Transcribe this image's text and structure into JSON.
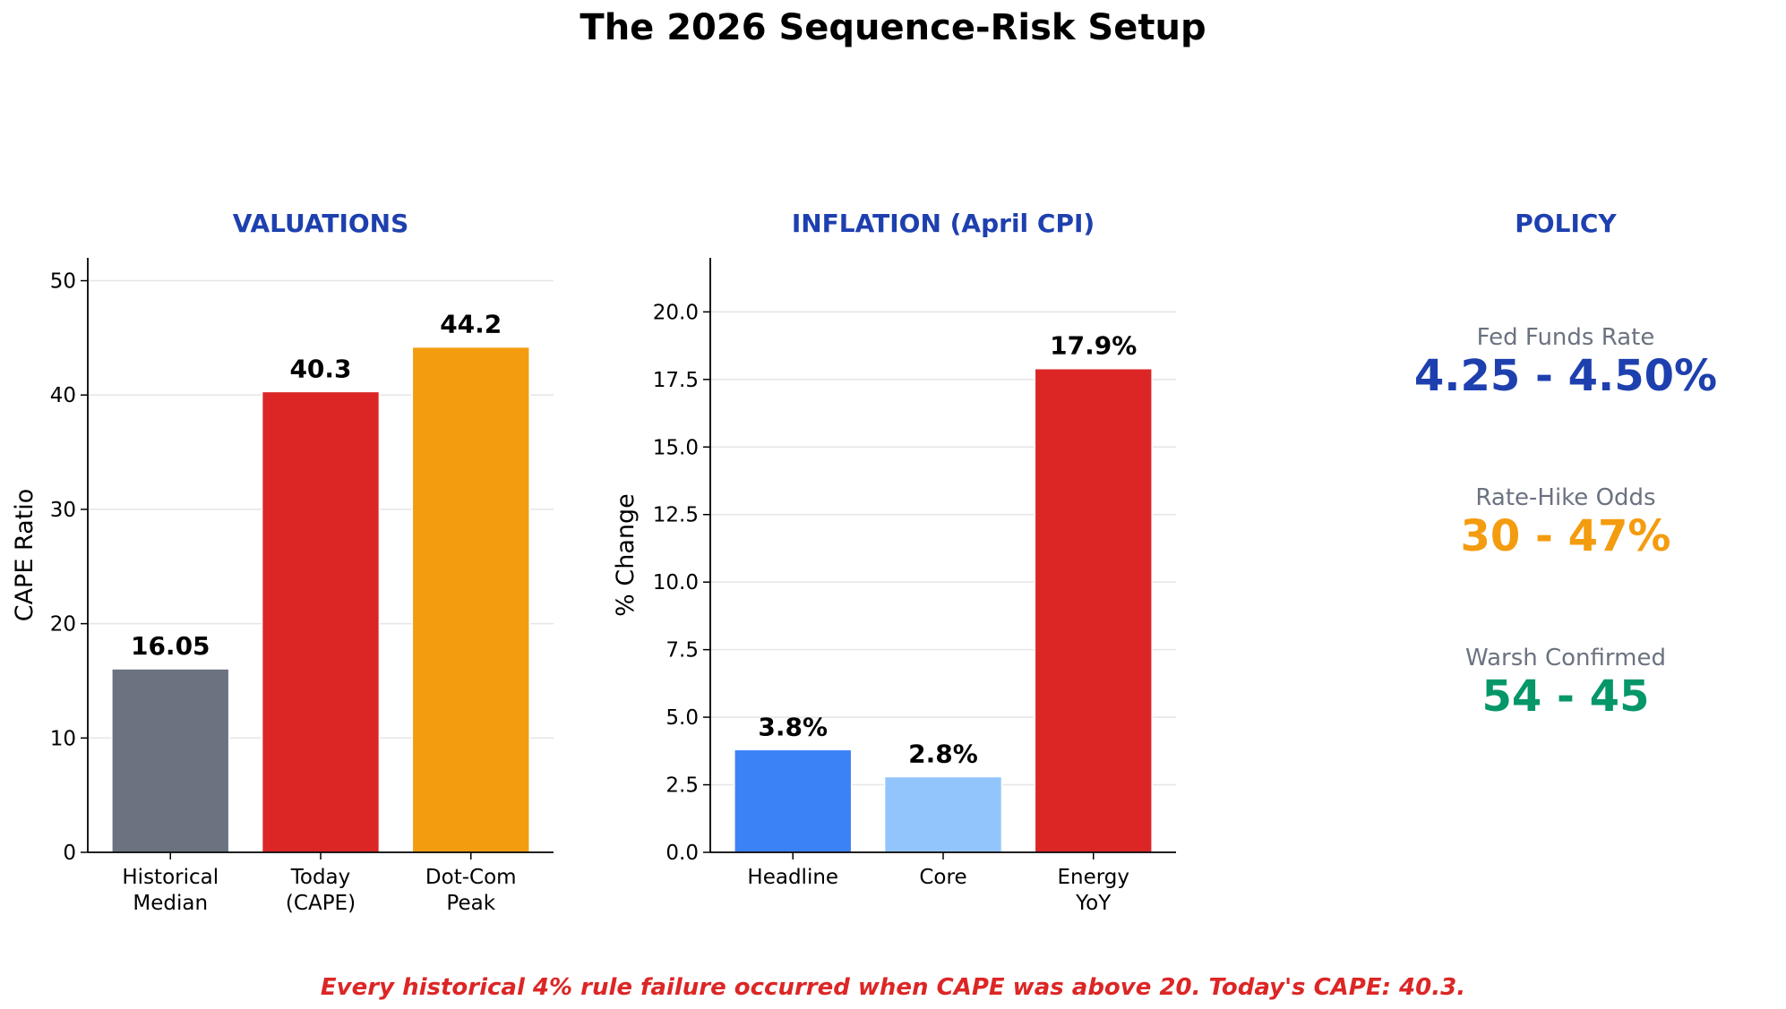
{
  "title": "The 2026 Sequence-Risk Setup",
  "colors": {
    "heading": "#1e40af",
    "footer": "#dc2626"
  },
  "chart_data": [
    {
      "type": "bar",
      "title": "VALUATIONS",
      "ylabel": "CAPE Ratio",
      "ylim": [
        0,
        52
      ],
      "yticks": [
        "0",
        "10",
        "20",
        "30",
        "40",
        "50"
      ],
      "categories": [
        [
          "Historical",
          "Median"
        ],
        [
          "Today",
          "(CAPE)"
        ],
        [
          "Dot-Com",
          "Peak"
        ]
      ],
      "values": [
        16.05,
        40.3,
        44.2
      ],
      "value_labels": [
        "16.05",
        "40.3",
        "44.2"
      ],
      "colors": [
        "#6b7280",
        "#dc2626",
        "#f39c0f"
      ],
      "grid": "y"
    },
    {
      "type": "bar",
      "title": "INFLATION (April CPI)",
      "ylabel": "% Change",
      "ylim": [
        0,
        22
      ],
      "yticks": [
        "0.0",
        "2.5",
        "5.0",
        "7.5",
        "10.0",
        "12.5",
        "15.0",
        "17.5",
        "20.0"
      ],
      "categories": [
        [
          "Headline"
        ],
        [
          "Core"
        ],
        [
          "Energy",
          "YoY"
        ]
      ],
      "values": [
        3.8,
        2.8,
        17.9
      ],
      "value_labels": [
        "3.8%",
        "2.8%",
        "17.9%"
      ],
      "colors": [
        "#3b82f6",
        "#93c5fd",
        "#dc2626"
      ],
      "grid": "y"
    }
  ],
  "policy": {
    "title": "POLICY",
    "items": [
      {
        "label": "Fed Funds Rate",
        "value": "4.25 - 4.50%",
        "color": "#1e40af"
      },
      {
        "label": "Rate-Hike Odds",
        "value": "30 - 47%",
        "color": "#f39c0f"
      },
      {
        "label": "Warsh Confirmed",
        "value": "54 - 45",
        "color": "#059669"
      }
    ]
  },
  "footer": "Every historical 4% rule failure occurred when CAPE was above 20.   Today's CAPE: 40.3."
}
